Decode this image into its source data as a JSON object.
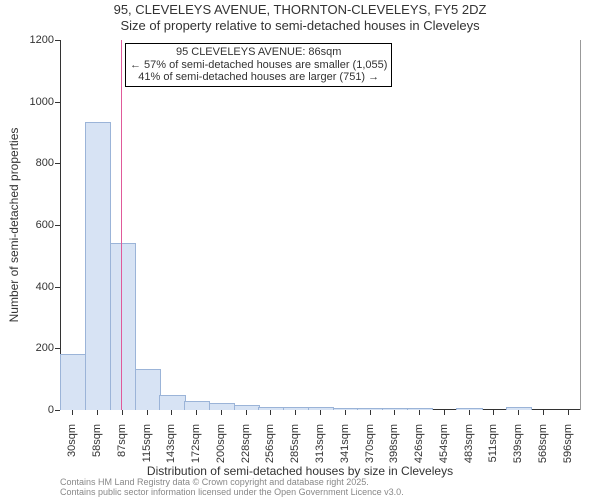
{
  "chart": {
    "type": "histogram",
    "title": "95, CLEVELEYS AVENUE, THORNTON-CLEVELEYS, FY5 2DZ",
    "subtitle": "Size of property relative to semi-detached houses in Cleveleys",
    "xlabel": "Distribution of semi-detached houses by size in Cleveleys",
    "ylabel": "Number of semi-detached properties",
    "ylim": [
      0,
      1200
    ],
    "ytick_step": 200,
    "x_ticks": [
      "30sqm",
      "58sqm",
      "87sqm",
      "115sqm",
      "143sqm",
      "172sqm",
      "200sqm",
      "228sqm",
      "256sqm",
      "285sqm",
      "313sqm",
      "341sqm",
      "370sqm",
      "398sqm",
      "426sqm",
      "454sqm",
      "483sqm",
      "511sqm",
      "539sqm",
      "568sqm",
      "596sqm"
    ],
    "values": [
      180,
      930,
      540,
      130,
      45,
      25,
      18,
      12,
      8,
      6,
      5,
      4,
      3,
      2,
      2,
      0,
      2,
      0,
      8,
      0,
      0
    ],
    "bar_fill": "#d7e3f4",
    "bar_stroke": "#9bb4d8",
    "highlight_index": 2,
    "highlight_value_sqm": 86,
    "highlight_color": "#e05a9a",
    "background_color": "#ffffff",
    "axis_color": "#333333",
    "tick_fontsize": 11,
    "label_fontsize": 12,
    "title_fontsize": 13,
    "annotation": {
      "line1": "95 CLEVELEYS AVENUE: 86sqm",
      "line2": "← 57% of semi-detached houses are smaller (1,055)",
      "line3": "41% of semi-detached houses are larger (751) →",
      "border_color": "#000000",
      "bg_color": "#ffffff"
    },
    "footer_line1": "Contains HM Land Registry data © Crown copyright and database right 2025.",
    "footer_line2": "Contains public sector information licensed under the Open Government Licence v3.0.",
    "footer_color": "#888888"
  }
}
